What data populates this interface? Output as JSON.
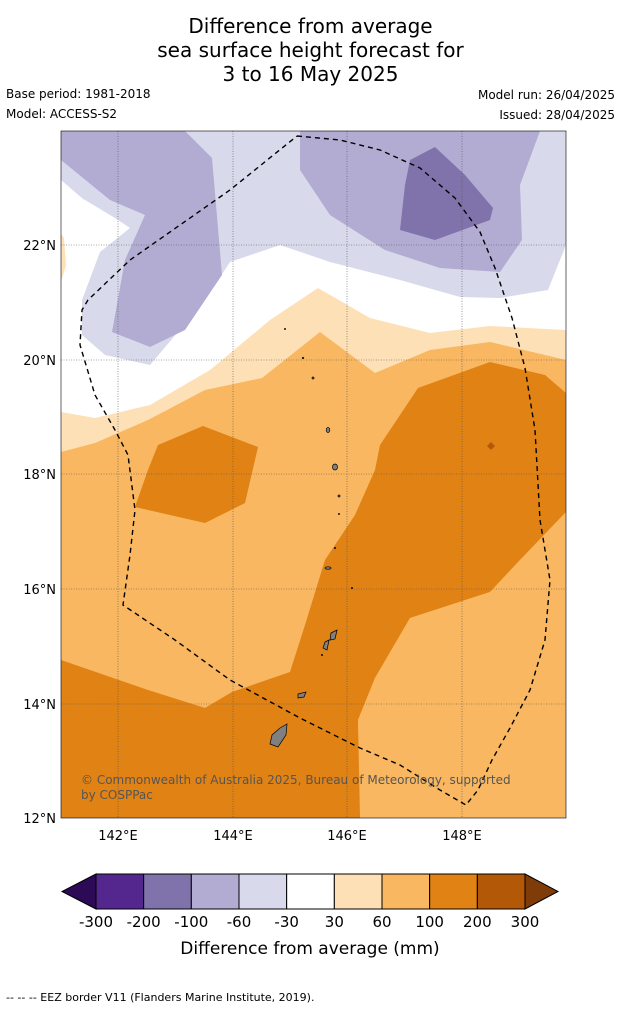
{
  "title": {
    "line1": "Difference from average",
    "line2": "sea surface height forecast for",
    "line3": "3 to 16 May 2025"
  },
  "meta": {
    "base_period": "Base period: 1981-2018",
    "model": "Model: ACCESS-S2",
    "model_run": "Model run: 26/04/2025",
    "issued": "Issued: 28/04/2025"
  },
  "map": {
    "lat_labels": [
      "22°N",
      "20°N",
      "18°N",
      "16°N",
      "14°N",
      "12°N"
    ],
    "lon_labels": [
      "142°E",
      "144°E",
      "146°E",
      "148°E"
    ],
    "copyright": {
      "line1": "© Commonwealth of Australia 2025, Bureau of Meteorology, supported",
      "line2": "by COSPPac"
    }
  },
  "colorbar": {
    "ticks": [
      "-300",
      "-200",
      "-100",
      "-60",
      "-30",
      "30",
      "60",
      "100",
      "200",
      "300"
    ],
    "colors": [
      "#2d0a55",
      "#54278f",
      "#8073ac",
      "#b2abd2",
      "#d8daeb",
      "#ffffff",
      "#fee0b6",
      "#f8b760",
      "#e08214",
      "#b35806",
      "#7f3b08"
    ],
    "label": "Difference from average (mm)"
  },
  "footer": "--  --  -- EEZ border V11 (Flanders Marine Institute, 2019)."
}
